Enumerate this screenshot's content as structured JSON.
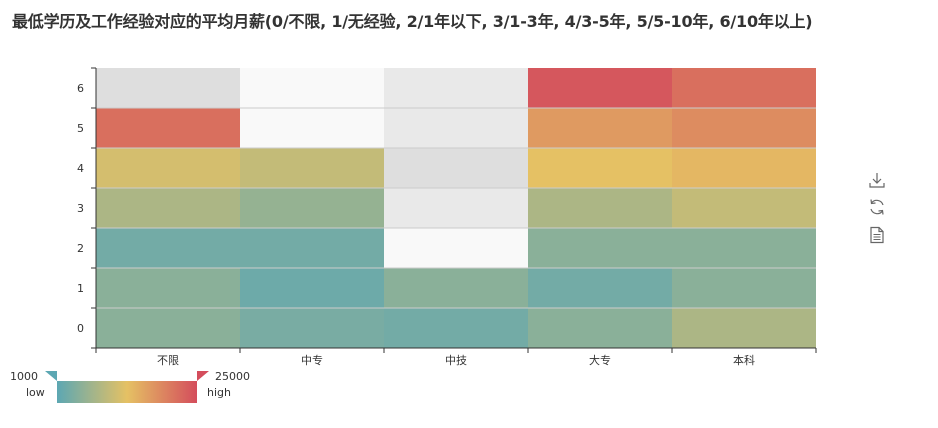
{
  "chart_data": {
    "type": "heatmap",
    "title": "最低学历及工作经验对应的平均月薪(0/不限, 1/无经验, 2/1年以下, 3/1-3年, 4/3-5年, 5/5-10年, 6/10年以上)",
    "xlabel": "",
    "ylabel": "",
    "x_categories": [
      "不限",
      "中专",
      "中技",
      "大专",
      "本科"
    ],
    "y_categories": [
      "0",
      "1",
      "2",
      "3",
      "4",
      "5",
      "6"
    ],
    "values": [
      [
        5000,
        3500,
        3000,
        5000,
        8000
      ],
      [
        5000,
        2500,
        5000,
        3000,
        5000
      ],
      [
        3000,
        3000,
        null,
        5000,
        5000
      ],
      [
        8000,
        6000,
        null,
        8000,
        10000
      ],
      [
        11500,
        10000,
        null,
        13000,
        14000
      ],
      [
        21500,
        null,
        null,
        17000,
        18500
      ],
      [
        null,
        null,
        null,
        24000,
        21500
      ]
    ],
    "visual_map": {
      "min": 1000,
      "max": 25000,
      "min_text": "1000",
      "max_text": "25000",
      "low_label": "low",
      "high_label": "high",
      "colors": [
        "#5ca7b3",
        "#e5c164",
        "#d44d5c"
      ]
    },
    "empty_cell_colors": [
      "#f9f9f9",
      "#e9e9e9",
      "#dedede"
    ],
    "grid": true,
    "legend": "bottom-left visual map"
  },
  "toolbox": {
    "items": [
      {
        "name": "download-icon"
      },
      {
        "name": "refresh-icon"
      },
      {
        "name": "data-view-icon"
      }
    ]
  }
}
